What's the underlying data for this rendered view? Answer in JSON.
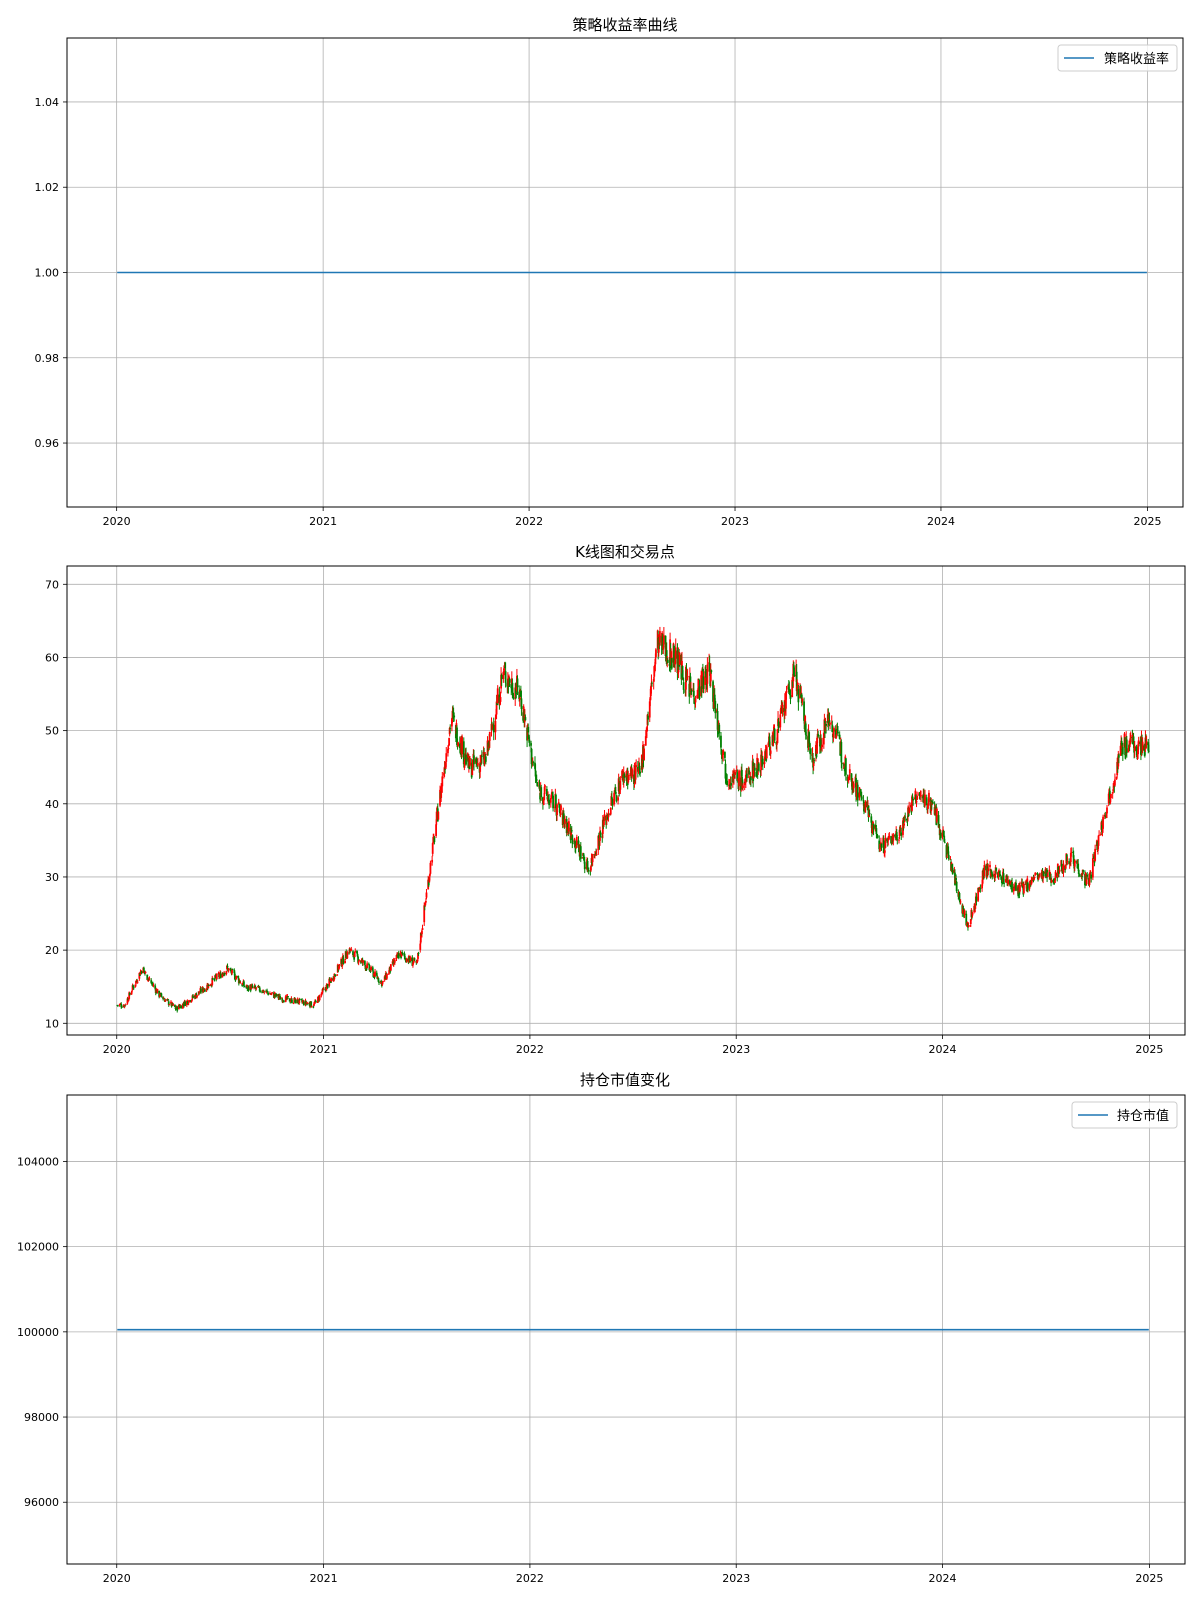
{
  "colors": {
    "line": "#1f77b4",
    "up_candle": "#ff0000",
    "down_candle": "#008000",
    "grid": "#b0b0b0"
  },
  "chart_data": [
    {
      "id": "returns",
      "type": "line",
      "title": "策略收益率曲线",
      "xlabel": "",
      "ylabel": "",
      "x_ticks": [
        "2020",
        "2021",
        "2022",
        "2023",
        "2024",
        "2025"
      ],
      "y_ticks": [
        "0.96",
        "0.98",
        "1.00",
        "1.02",
        "1.04"
      ],
      "y_tick_values": [
        0.96,
        0.98,
        1.0,
        1.02,
        1.04
      ],
      "ylim": [
        0.945,
        1.055
      ],
      "xlim": [
        "2019-10-05",
        "2025-03-05"
      ],
      "grid": true,
      "legend": "upper right",
      "series": [
        {
          "name": "策略收益率",
          "x": [
            "2020-01-02",
            "2024-12-31"
          ],
          "values": [
            1.0,
            1.0
          ]
        }
      ]
    },
    {
      "id": "kline",
      "type": "candlestick",
      "title": "K线图和交易点",
      "xlabel": "",
      "ylabel": "",
      "x_ticks": [
        "2020",
        "2021",
        "2022",
        "2023",
        "2024",
        "2025"
      ],
      "y_ticks": [
        "10",
        "20",
        "30",
        "40",
        "50",
        "60",
        "70"
      ],
      "y_tick_values": [
        10,
        20,
        30,
        40,
        50,
        60,
        70
      ],
      "ylim": [
        8.4,
        72.5
      ],
      "xlim": [
        "2019-10-05",
        "2025-03-05"
      ],
      "grid": true,
      "close_by_month": {
        "months": [
          "2020-01",
          "2020-02",
          "2020-03",
          "2020-04",
          "2020-05",
          "2020-06",
          "2020-07",
          "2020-08",
          "2020-09",
          "2020-10",
          "2020-11",
          "2020-12",
          "2021-01",
          "2021-02",
          "2021-03",
          "2021-04",
          "2021-05",
          "2021-06",
          "2021-07",
          "2021-08",
          "2021-09",
          "2021-10",
          "2021-11",
          "2021-12",
          "2022-01",
          "2022-02",
          "2022-03",
          "2022-04",
          "2022-05",
          "2022-06",
          "2022-07",
          "2022-08",
          "2022-09",
          "2022-10",
          "2022-11",
          "2022-12",
          "2023-01",
          "2023-02",
          "2023-03",
          "2023-04",
          "2023-05",
          "2023-06",
          "2023-07",
          "2023-08",
          "2023-09",
          "2023-10",
          "2023-11",
          "2023-12",
          "2024-01",
          "2024-02",
          "2024-03",
          "2024-04",
          "2024-05",
          "2024-06",
          "2024-07",
          "2024-08",
          "2024-09",
          "2024-10",
          "2024-11",
          "2024-12"
        ],
        "values": [
          12.5,
          17.5,
          14.0,
          12.0,
          13.5,
          15.5,
          17.5,
          15.0,
          14.5,
          13.5,
          13.0,
          12.5,
          16.0,
          20.0,
          18.0,
          15.5,
          19.5,
          18.0,
          35.0,
          52.0,
          45.0,
          46.0,
          58.0,
          55.0,
          42.0,
          40.0,
          36.0,
          31.0,
          38.0,
          44.0,
          44.0,
          62.0,
          60.0,
          55.0,
          58.0,
          44.0,
          43.0,
          46.0,
          50.0,
          58.0,
          46.0,
          52.0,
          45.0,
          40.0,
          34.0,
          36.0,
          41.0,
          40.0,
          32.0,
          23.0,
          31.0,
          30.0,
          28.0,
          30.0,
          30.0,
          33.0,
          29.0,
          39.0,
          48.0,
          48.0
        ]
      }
    },
    {
      "id": "position",
      "type": "line",
      "title": "持仓市值变化",
      "xlabel": "",
      "ylabel": "",
      "x_ticks": [
        "2020",
        "2021",
        "2022",
        "2023",
        "2024",
        "2025"
      ],
      "y_ticks": [
        "96000",
        "98000",
        "100000",
        "102000",
        "104000"
      ],
      "y_tick_values": [
        96000,
        98000,
        100000,
        102000,
        104000
      ],
      "ylim": [
        94550,
        105560
      ],
      "xlim": [
        "2019-10-05",
        "2025-03-05"
      ],
      "grid": true,
      "legend": "upper right",
      "series": [
        {
          "name": "持仓市值",
          "x": [
            "2020-01-02",
            "2024-12-31"
          ],
          "values": [
            100050,
            100050
          ]
        }
      ]
    }
  ]
}
